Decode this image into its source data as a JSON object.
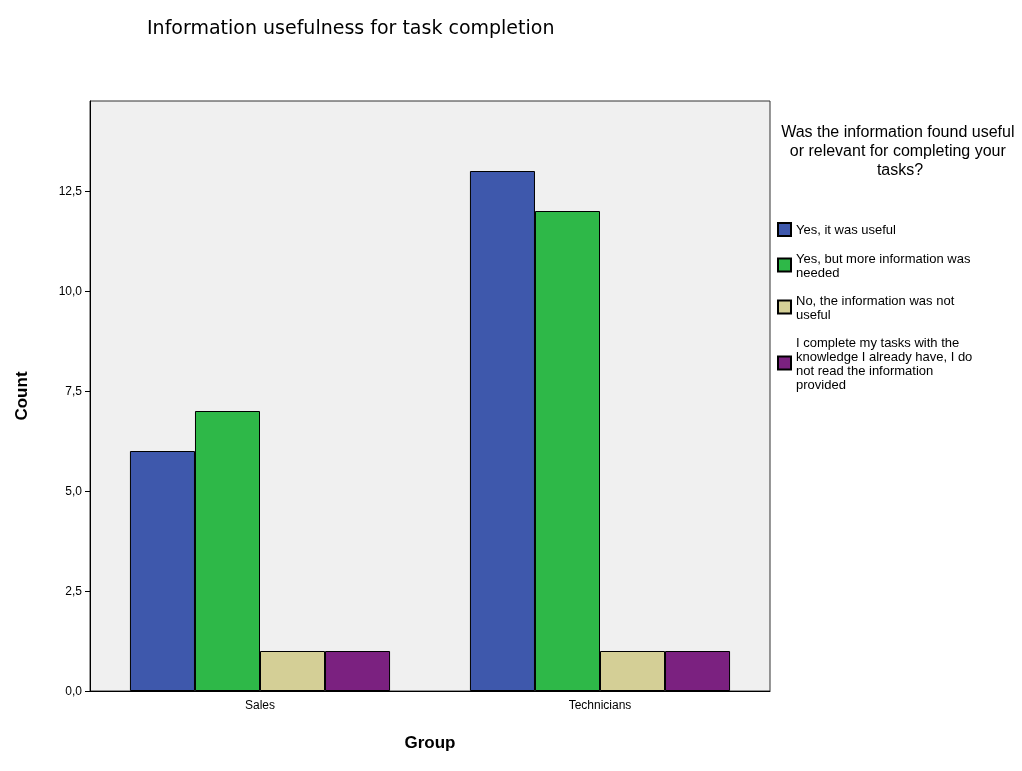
{
  "chart_data": {
    "type": "bar",
    "title": "Information usefulness for task completion",
    "xlabel": "Group",
    "ylabel": "Count",
    "legend_title": "Was the information found useful or relevant for completing your tasks?",
    "categories": [
      "Sales",
      "Technicians"
    ],
    "series": [
      {
        "name": "Yes, it was useful",
        "color": "#3e58ac",
        "values": [
          6,
          13
        ]
      },
      {
        "name": "Yes, but more information was needed",
        "color": "#2eb848",
        "values": [
          7,
          12
        ]
      },
      {
        "name": "No, the information was not useful",
        "color": "#d4cf96",
        "values": [
          1,
          1
        ]
      },
      {
        "name": "I complete my tasks with the knowledge I already have, I do not read the information provided",
        "color": "#7b2180",
        "values": [
          1,
          1
        ]
      }
    ],
    "ylim": [
      0,
      14.75
    ],
    "yticks": [
      {
        "value": 0,
        "label": "0,0"
      },
      {
        "value": 2.5,
        "label": "2,5"
      },
      {
        "value": 5,
        "label": "5,0"
      },
      {
        "value": 7.5,
        "label": "7,5"
      },
      {
        "value": 10,
        "label": "10,0"
      },
      {
        "value": 12.5,
        "label": "12,5"
      }
    ],
    "grid": false,
    "legend": "right"
  }
}
